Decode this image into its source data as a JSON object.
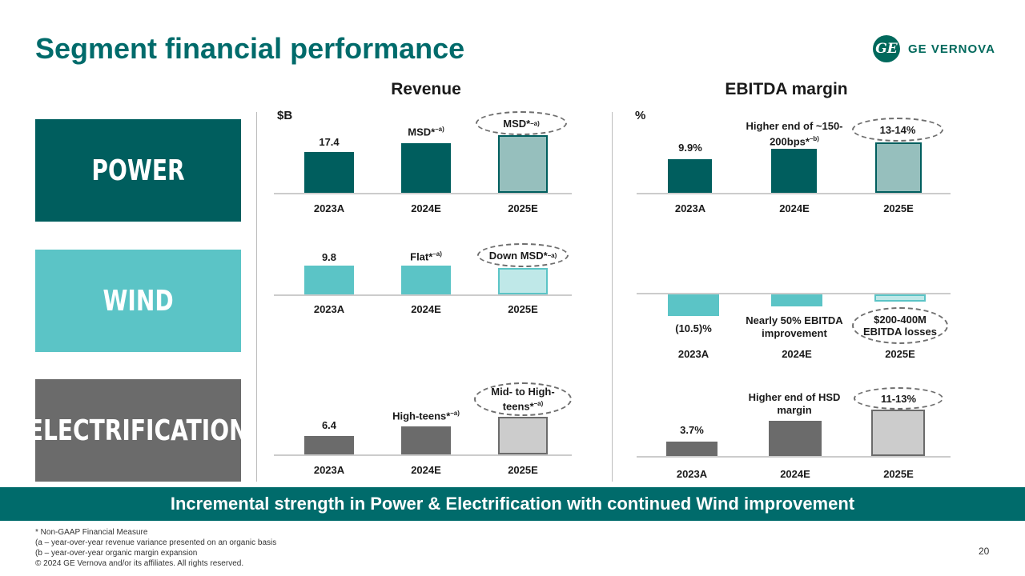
{
  "header": {
    "title": "Segment financial performance",
    "logo_text": "GE VERNOVA",
    "logo_mark": "GE"
  },
  "columns": {
    "revenue": "Revenue",
    "ebitda": "EBITDA margin",
    "revenue_unit": "$B",
    "ebitda_unit": "%"
  },
  "segments": [
    {
      "name": "POWER",
      "color": "#005e5e"
    },
    {
      "name": "WIND",
      "color": "#5bc4c6"
    },
    {
      "name": "ELECTRIFICATION",
      "color": "#6b6b6b"
    }
  ],
  "chart_data": [
    {
      "type": "bar",
      "segment": "POWER",
      "metric": "Revenue",
      "categories": [
        "2023A",
        "2024E",
        "2025E"
      ],
      "labels": [
        "17.4",
        "MSD*",
        "MSD*"
      ],
      "footnote_marks": [
        "",
        "–a)",
        "–a)"
      ],
      "relative_values": [
        17.4,
        18.4,
        19.6
      ],
      "highlighted": "2025E"
    },
    {
      "type": "bar",
      "segment": "POWER",
      "metric": "EBITDA margin",
      "categories": [
        "2023A",
        "2024E",
        "2025E"
      ],
      "labels": [
        "9.9%",
        "Higher end of ~150-200bps*",
        "13-14%"
      ],
      "footnote_marks": [
        "",
        "–b)",
        ""
      ],
      "relative_values": [
        9.9,
        11.6,
        13.5
      ],
      "highlighted": "2025E"
    },
    {
      "type": "bar",
      "segment": "WIND",
      "metric": "Revenue",
      "categories": [
        "2023A",
        "2024E",
        "2025E"
      ],
      "labels": [
        "9.8",
        "Flat*",
        "Down MSD*"
      ],
      "footnote_marks": [
        "",
        "–a)",
        "–a)"
      ],
      "relative_values": [
        9.8,
        9.8,
        9.1
      ],
      "highlighted": "2025E"
    },
    {
      "type": "bar",
      "segment": "WIND",
      "metric": "EBITDA margin",
      "categories": [
        "2023A",
        "2024E",
        "2025E"
      ],
      "labels": [
        "(10.5)%",
        "Nearly 50% EBITDA improvement",
        "$200-400M EBITDA losses"
      ],
      "relative_values": [
        -10.5,
        -5.0,
        -2.0
      ],
      "highlighted": "2025E"
    },
    {
      "type": "bar",
      "segment": "ELECTRIFICATION",
      "metric": "Revenue",
      "categories": [
        "2023A",
        "2024E",
        "2025E"
      ],
      "labels": [
        "6.4",
        "High-teens*",
        "Mid- to High-teens*"
      ],
      "footnote_marks": [
        "",
        "–a)",
        "–a)"
      ],
      "relative_values": [
        6.4,
        9.6,
        12.9
      ],
      "highlighted": "2025E"
    },
    {
      "type": "bar",
      "segment": "ELECTRIFICATION",
      "metric": "EBITDA margin",
      "categories": [
        "2023A",
        "2024E",
        "2025E"
      ],
      "labels": [
        "3.7%",
        "Higher end of HSD margin",
        "11-13%"
      ],
      "relative_values": [
        3.7,
        8.9,
        12.0
      ],
      "highlighted": "2025E"
    }
  ],
  "banner": "Incremental strength in Power & Electrification with continued Wind improvement",
  "footnotes": [
    "* Non-GAAP Financial Measure",
    "(a – year-over-year revenue variance presented on an organic basis",
    "(b – year-over-year organic margin expansion",
    "© 2024 GE Vernova and/or its affiliates. All rights reserved."
  ],
  "page_number": "20",
  "colors": {
    "power": "#005e5e",
    "power_light": "#96bfbd",
    "wind": "#5bc4c6",
    "wind_light": "#bfe8e8",
    "elec": "#6b6b6b",
    "elec_light": "#cccccc"
  }
}
